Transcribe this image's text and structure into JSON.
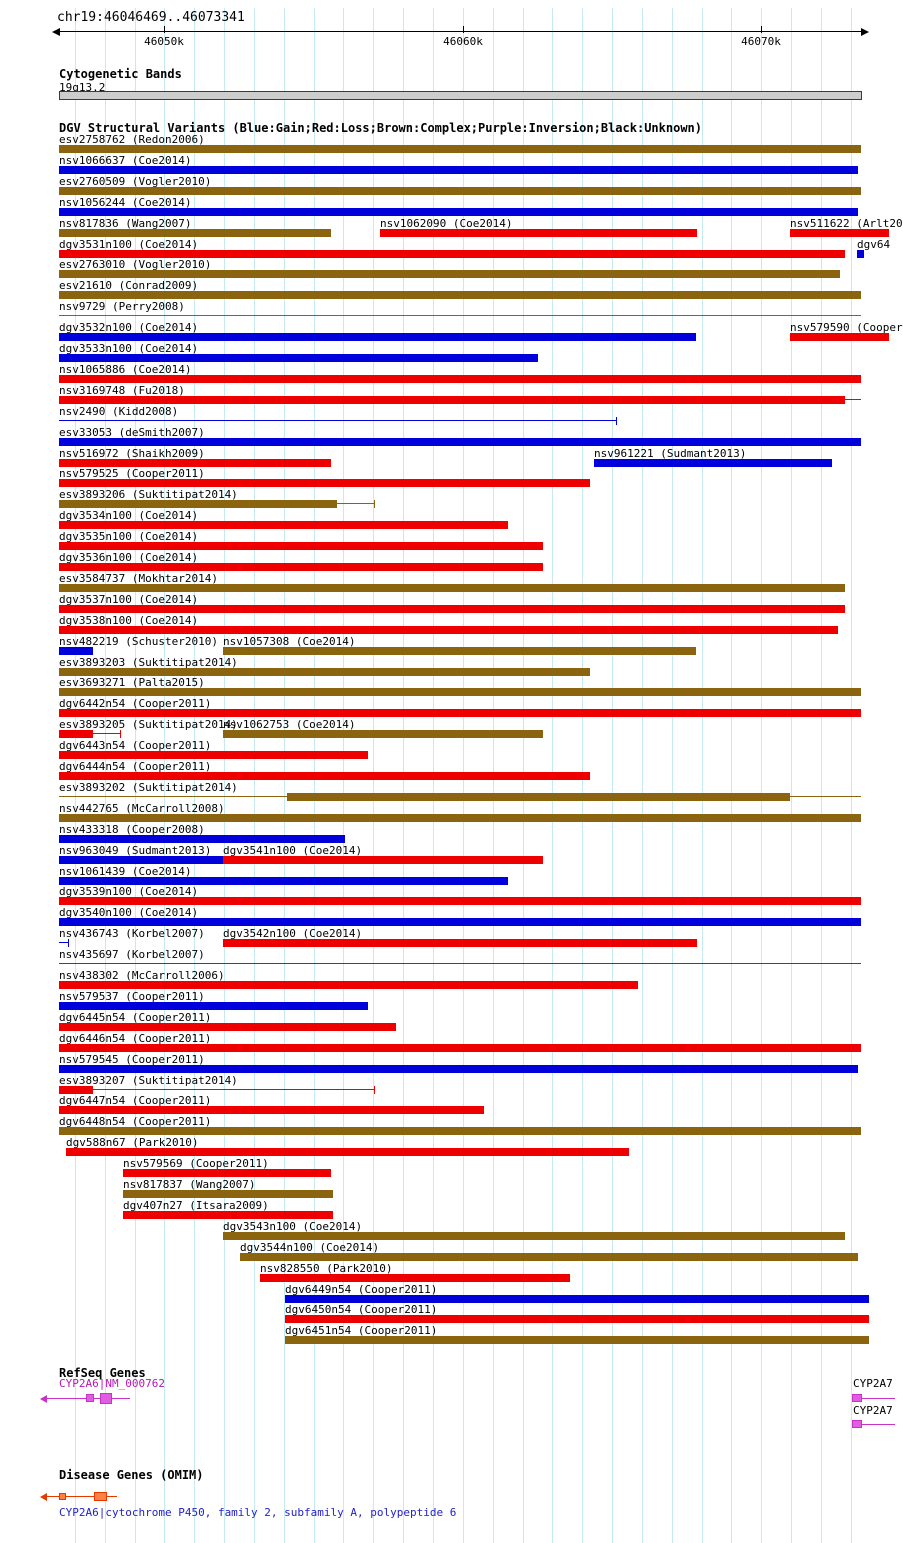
{
  "chart_data": {
    "type": "genome-tracks",
    "region": {
      "chrom": "chr19",
      "start": 46046469,
      "end": 46073341,
      "title": "chr19:46046469..46073341"
    },
    "axis": {
      "grid_interval": 1000,
      "ticks": [
        {
          "pos": 46050000,
          "label": "46050k"
        },
        {
          "pos": 46060000,
          "label": "46060k"
        },
        {
          "pos": 46070000,
          "label": "46070k"
        }
      ]
    },
    "colors": {
      "gain": "#0000dd",
      "loss": "#ee0000",
      "complex": "#8b6410",
      "grid": "#c6eaf2",
      "band_fill": "#cdcdcd",
      "band_border": "#3a3a3a",
      "gene": "#c832c8",
      "gene_fill": "#e05ce0",
      "omim_line": "#e63900",
      "omim_fill": "#ff8040",
      "caption": "#2222cc"
    },
    "tracks": {
      "cytoband": {
        "title": "Cytogenetic Bands",
        "band": "19q13.2"
      },
      "dgv": {
        "title": "DGV Structural Variants (Blue:Gain;Red:Loss;Brown:Complex;Purple:Inversion;Black:Unknown)",
        "rows": [
          [
            {
              "label": "esv2758762 (Redon2006)",
              "type": "complex",
              "bar": [
                46046469,
                46073341
              ]
            }
          ],
          [
            {
              "label": "nsv1066637 (Coe2014)",
              "type": "gain",
              "bar": [
                46046469,
                46073240
              ]
            }
          ],
          [
            {
              "label": "esv2760509 (Vogler2010)",
              "type": "complex",
              "bar": [
                46046469,
                46073341
              ]
            }
          ],
          [
            {
              "label": "nsv1056244 (Coe2014)",
              "type": "gain",
              "bar": [
                46046469,
                46073240
              ]
            }
          ],
          [
            {
              "label": "nsv817836 (Wang2007)",
              "type": "complex",
              "bar": [
                46046469,
                46055580
              ]
            },
            {
              "label": "nsv1062090 (Coe2014)",
              "type": "loss",
              "bar": [
                46057230,
                46067850
              ]
            },
            {
              "label": "nsv511622 (Arlt20",
              "type": "loss",
              "bar": [
                46070970,
                46074300
              ]
            }
          ],
          [
            {
              "label": "dgv3531n100 (Coe2014)",
              "type": "loss",
              "bar": [
                46046469,
                46072810
              ]
            },
            {
              "label": "dgv64",
              "type": "gain",
              "bar": [
                46073200,
                46073450
              ]
            }
          ],
          [
            {
              "label": "esv2763010 (Vogler2010)",
              "type": "complex",
              "bar": [
                46046469,
                46072640
              ]
            }
          ],
          [
            {
              "label": "esv21610 (Conrad2009)",
              "type": "complex",
              "bar": [
                46046469,
                46073341
              ]
            }
          ],
          [
            {
              "label": "nsv9729 (Perry2008)",
              "type": "complex",
              "line": [
                46046469,
                46073341
              ]
            }
          ],
          [
            {
              "label": "dgv3532n100 (Coe2014)",
              "type": "gain",
              "bar": [
                46046469,
                46067810
              ]
            },
            {
              "label": "nsv579590 (Cooper",
              "type": "loss",
              "bar": [
                46070970,
                46074300
              ]
            }
          ],
          [
            {
              "label": "dgv3533n100 (Coe2014)",
              "type": "gain",
              "bar": [
                46046469,
                46062520
              ]
            }
          ],
          [
            {
              "label": "nsv1065886 (Coe2014)",
              "type": "loss",
              "bar": [
                46046469,
                46073341
              ]
            }
          ],
          [
            {
              "label": "nsv3169748 (Fu2018)",
              "type": "loss",
              "bar": [
                46046469,
                46072810
              ],
              "line": [
                46072810,
                46073341
              ]
            }
          ],
          [
            {
              "label": "nsv2490 (Kidd2008)",
              "type": "gain",
              "line": [
                46046469,
                46065130
              ],
              "ticks": [
                46065130
              ]
            }
          ],
          [
            {
              "label": "esv33053 (deSmith2007)",
              "type": "gain",
              "bar": [
                46046469,
                46073341
              ]
            }
          ],
          [
            {
              "label": "nsv516972 (Shaikh2009)",
              "type": "loss",
              "bar": [
                46046469,
                46055580
              ]
            },
            {
              "label": "nsv961221 (Sudmant2013)",
              "type": "gain",
              "bar": [
                46064400,
                46072370
              ]
            }
          ],
          [
            {
              "label": "nsv579525 (Cooper2011)",
              "type": "loss",
              "bar": [
                46046469,
                46064260
              ]
            }
          ],
          [
            {
              "label": "esv3893206 (Suktitipat2014)",
              "type": "complex",
              "bar": [
                46046469,
                46055790
              ],
              "line": [
                46055790,
                46057030
              ],
              "ticks": [
                46057030
              ]
            }
          ],
          [
            {
              "label": "dgv3534n100 (Coe2014)",
              "type": "loss",
              "bar": [
                46046469,
                46061520
              ]
            }
          ],
          [
            {
              "label": "dgv3535n100 (Coe2014)",
              "type": "loss",
              "bar": [
                46046469,
                46062690
              ]
            }
          ],
          [
            {
              "label": "dgv3536n100 (Coe2014)",
              "type": "loss",
              "bar": [
                46046469,
                46062690
              ]
            }
          ],
          [
            {
              "label": "esv3584737 (Mokhtar2014)",
              "type": "complex",
              "bar": [
                46046469,
                46072810
              ]
            }
          ],
          [
            {
              "label": "dgv3537n100 (Coe2014)",
              "type": "loss",
              "bar": [
                46046469,
                46072810
              ]
            }
          ],
          [
            {
              "label": "dgv3538n100 (Coe2014)",
              "type": "loss",
              "bar": [
                46046469,
                46072570
              ]
            }
          ],
          [
            {
              "label": "nsv482219 (Schuster2010)",
              "type": "gain",
              "bar": [
                46046469,
                46047610
              ]
            },
            {
              "label": "nsv1057308 (Coe2014)",
              "type": "complex",
              "bar": [
                46051970,
                46067810
              ]
            }
          ],
          [
            {
              "label": "esv3893203 (Suktitipat2014)",
              "type": "complex",
              "bar": [
                46046469,
                46064260
              ]
            }
          ],
          [
            {
              "label": "esv3693271 (Palta2015)",
              "type": "complex",
              "bar": [
                46046469,
                46073341
              ]
            }
          ],
          [
            {
              "label": "dgv6442n54 (Cooper2011)",
              "type": "loss",
              "bar": [
                46046469,
                46073341
              ]
            }
          ],
          [
            {
              "label": "esv3893205 (Suktitipat2014)",
              "type": "loss",
              "bar": [
                46046469,
                46047610
              ],
              "line": [
                46047610,
                46048510
              ],
              "ticks": [
                46048510
              ]
            },
            {
              "label": "nsv1062753 (Coe2014)",
              "type": "complex",
              "bar": [
                46051970,
                46062690
              ]
            }
          ],
          [
            {
              "label": "dgv6443n54 (Cooper2011)",
              "type": "loss",
              "bar": [
                46046469,
                46056820
              ]
            }
          ],
          [
            {
              "label": "dgv6444n54 (Cooper2011)",
              "type": "loss",
              "bar": [
                46046469,
                46064260
              ]
            }
          ],
          [
            {
              "label": "esv3893202 (Suktitipat2014)",
              "type": "complex",
              "bar": [
                46054110,
                46070970
              ],
              "line": [
                46046469,
                46073341
              ],
              "label_at": 46046469
            }
          ],
          [
            {
              "label": "nsv442765 (McCarroll2008)",
              "type": "complex",
              "bar": [
                46046469,
                46073341
              ]
            }
          ],
          [
            {
              "label": "nsv433318 (Cooper2008)",
              "type": "gain",
              "bar": [
                46046469,
                46056050
              ]
            }
          ],
          [
            {
              "label": "nsv963049 (Sudmant2013)",
              "type": "gain",
              "bar": [
                46046469,
                46051970
              ]
            },
            {
              "label": "dgv3541n100 (Coe2014)",
              "type": "loss",
              "bar": [
                46051970,
                46062690
              ]
            }
          ],
          [
            {
              "label": "nsv1061439 (Coe2014)",
              "type": "gain",
              "bar": [
                46046469,
                46061520
              ]
            }
          ],
          [
            {
              "label": "dgv3539n100 (Coe2014)",
              "type": "loss",
              "bar": [
                46046469,
                46073341
              ]
            }
          ],
          [
            {
              "label": "dgv3540n100 (Coe2014)",
              "type": "gain",
              "bar": [
                46046469,
                46073341
              ]
            }
          ],
          [
            {
              "label": "nsv436743 (Korbel2007)",
              "type": "gain",
              "line": [
                46046469,
                46046770
              ],
              "ticks": [
                46046770
              ]
            },
            {
              "label": "dgv3542n100 (Coe2014)",
              "type": "loss",
              "bar": [
                46051970,
                46067850
              ]
            }
          ],
          [
            {
              "label": "nsv435697 (Korbel2007)",
              "type": "loss",
              "line": [
                46046469,
                46073341
              ]
            }
          ],
          [
            {
              "label": "nsv438302 (McCarroll2006)",
              "type": "loss",
              "bar": [
                46046469,
                46065870
              ]
            }
          ],
          [
            {
              "label": "nsv579537 (Cooper2011)",
              "type": "gain",
              "bar": [
                46046469,
                46056820
              ]
            }
          ],
          [
            {
              "label": "dgv6445n54 (Cooper2011)",
              "type": "loss",
              "bar": [
                46046469,
                46057760
              ]
            }
          ],
          [
            {
              "label": "dgv6446n54 (Cooper2011)",
              "type": "loss",
              "bar": [
                46046469,
                46073341
              ]
            }
          ],
          [
            {
              "label": "nsv579545 (Cooper2011)",
              "type": "gain",
              "bar": [
                46046469,
                46073240
              ]
            }
          ],
          [
            {
              "label": "esv3893207 (Suktitipat2014)",
              "type": "loss",
              "bar": [
                46046469,
                46047610
              ],
              "line": [
                46047610,
                46057030
              ],
              "ticks": [
                46057030
              ]
            }
          ],
          [
            {
              "label": "dgv6447n54 (Cooper2011)",
              "type": "loss",
              "bar": [
                46046469,
                46060710
              ]
            }
          ],
          [
            {
              "label": "dgv6448n54 (Cooper2011)",
              "type": "complex",
              "bar": [
                46046469,
                46073341
              ]
            }
          ],
          [
            {
              "label": "dgv588n67 (Park2010)",
              "type": "loss",
              "bar": [
                46046700,
                46065570
              ]
            }
          ],
          [
            {
              "label": "nsv579569 (Cooper2011)",
              "type": "loss",
              "bar": [
                46048610,
                46055580
              ]
            }
          ],
          [
            {
              "label": "nsv817837 (Wang2007)",
              "type": "complex",
              "bar": [
                46048610,
                46055650
              ]
            }
          ],
          [
            {
              "label": "dgv407n27 (Itsara2009)",
              "type": "loss",
              "bar": [
                46048610,
                46055650
              ]
            }
          ],
          [
            {
              "label": "dgv3543n100 (Coe2014)",
              "type": "complex",
              "bar": [
                46051970,
                46072810
              ]
            }
          ],
          [
            {
              "label": "dgv3544n100 (Coe2014)",
              "type": "complex",
              "bar": [
                46052530,
                46073240
              ]
            }
          ],
          [
            {
              "label": "nsv828550 (Park2010)",
              "type": "loss",
              "bar": [
                46053200,
                46063590
              ]
            }
          ],
          [
            {
              "label": "dgv6449n54 (Cooper2011)",
              "type": "gain",
              "bar": [
                46054040,
                46073610
              ]
            }
          ],
          [
            {
              "label": "dgv6450n54 (Cooper2011)",
              "type": "loss",
              "bar": [
                46054040,
                46073610
              ]
            }
          ],
          [
            {
              "label": "dgv6451n54 (Cooper2011)",
              "type": "complex",
              "bar": [
                46054040,
                46073610
              ]
            }
          ]
        ]
      },
      "refseq": {
        "title": "RefSeq Genes",
        "genes": [
          {
            "label": "CYP2A6|NM_000762",
            "label_color": "#b318b3",
            "label_at": 46046469,
            "row": 0,
            "strand": "left",
            "line": [
              46046070,
              46048850
            ],
            "exons": [
              [
                46047370,
                46047640,
                8
              ],
              [
                46047840,
                46048250,
                11
              ]
            ]
          },
          {
            "label": "CYP2A7",
            "label_color": "#000000",
            "label_at": 46073070,
            "row": 0,
            "strand": "none",
            "line": [
              46073050,
              46074500
            ],
            "exons": [
              [
                46073050,
                46073380,
                8
              ]
            ]
          },
          {
            "label": "CYP2A7",
            "label_color": "#000000",
            "label_at": 46073070,
            "row": 1,
            "strand": "none",
            "line": [
              46073050,
              46074500
            ],
            "exons": [
              [
                46073050,
                46073380,
                8
              ]
            ]
          }
        ]
      },
      "omim": {
        "title": "Disease Genes (OMIM)",
        "genes": [
          {
            "strand": "left",
            "line": [
              46046070,
              46048400
            ],
            "exons": [
              [
                46046469,
                46046700,
                7
              ],
              [
                46047640,
                46048070,
                9
              ]
            ]
          }
        ],
        "caption": "CYP2A6|cytochrome P450, family 2, subfamily A, polypeptide 6"
      }
    }
  }
}
